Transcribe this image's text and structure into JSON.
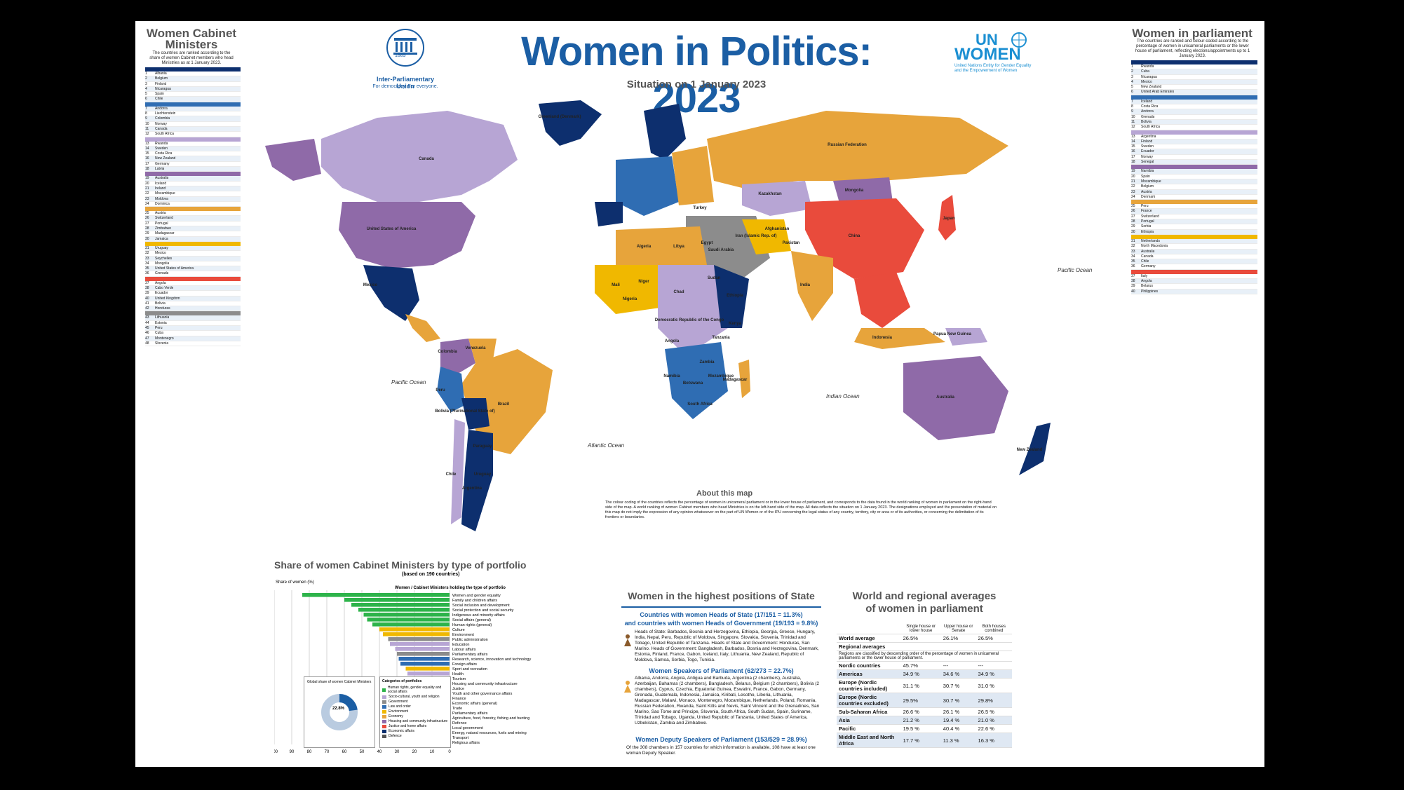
{
  "header": {
    "title": "Women in Politics: 2023",
    "subtitle": "Situation on 1 January 2023",
    "ipu_name": "Inter-Parliamentary Union",
    "ipu_tagline": "For democracy. For everyone.",
    "ipu_year": "1889",
    "unwomen_name": "WOMEN",
    "unwomen_un": "UN",
    "unwomen_tagline1": "United Nations Entity for Gender Equality",
    "unwomen_tagline2": "and the Empowerment of Women"
  },
  "left_panel": {
    "title1": "Women Cabinet",
    "title2": "Ministers",
    "note": "The countries are ranked according to the share of women Cabinet members who head Ministries as at 1 January 2023.",
    "rows": [
      "Albania",
      "Belgium",
      "Finland",
      "Nicaragua",
      "Spain",
      "Chile",
      "Andorra",
      "Liechtenstein",
      "Colombia",
      "Norway",
      "Canada",
      "South Africa",
      "Rwanda",
      "Sweden",
      "Costa Rica",
      "New Zealand",
      "Germany",
      "Latvia",
      "Australia",
      "Iceland",
      "Ireland",
      "Mozambique",
      "Moldova",
      "Dominica",
      "Austria",
      "Switzerland",
      "Portugal",
      "Zimbabwe",
      "Madagascar",
      "Jamaica",
      "Uruguay",
      "Mexico",
      "Seychelles",
      "Mongolia",
      "United States of America",
      "Grenada",
      "Angola",
      "Cabo Verde",
      "Ecuador",
      "United Kingdom",
      "Bolivia",
      "Honduras",
      "Lithuania",
      "Estonia",
      "Peru",
      "Cuba",
      "Montenegro",
      "Slovenia"
    ]
  },
  "right_panel": {
    "title": "Women in parliament",
    "note": "The countries are ranked and colour-coded according to the percentage of women in unicameral parliaments or the lower house of parliament, reflecting elections/appointments up to 1 January 2023.",
    "rows": [
      "Rwanda",
      "Cuba",
      "Nicaragua",
      "Mexico",
      "New Zealand",
      "United Arab Emirates",
      "Iceland",
      "Costa Rica",
      "Andorra",
      "Grenada",
      "Bolivia",
      "South Africa",
      "Argentina",
      "Finland",
      "Sweden",
      "Ecuador",
      "Norway",
      "Senegal",
      "Namibia",
      "Spain",
      "Mozambique",
      "Belgium",
      "Austria",
      "Denmark",
      "Peru",
      "France",
      "Switzerland",
      "Portugal",
      "Serbia",
      "Ethiopia",
      "Netherlands",
      "North Macedonia",
      "Australia",
      "Canada",
      "Chile",
      "Germany",
      "Italy",
      "Angola",
      "Belarus",
      "Philippines"
    ]
  },
  "map": {
    "oceans": [
      "Pacific Ocean",
      "Atlantic Ocean",
      "Indian Ocean",
      "Pacific Ocean"
    ],
    "labels": [
      "Canada",
      "United States of America",
      "Mexico",
      "Brazil",
      "Russian Federation",
      "China",
      "Australia",
      "India",
      "Algeria",
      "Libya",
      "Egypt",
      "Sudan",
      "Chad",
      "Niger",
      "Mali",
      "Kazakhstan",
      "Mongolia",
      "Greenland (Denmark)",
      "Argentina",
      "Peru",
      "Colombia",
      "Bolivia (Plurinational State of)",
      "Democratic Republic of the Congo",
      "Angola",
      "Ethiopia",
      "Iran (Islamic Rep. of)",
      "Saudi Arabia",
      "Indonesia",
      "Papua New Guinea",
      "New Zealand",
      "Japan",
      "Kenya",
      "Nigeria",
      "Chile",
      "Uruguay",
      "Venezuela",
      "Paraguay",
      "Pakistan",
      "Afghanistan",
      "Turkey",
      "Madagascar",
      "South Africa",
      "Botswana",
      "Namibia",
      "Zambia",
      "Mozambique",
      "Tanzania"
    ]
  },
  "about": {
    "title": "About this map",
    "text": "The colour coding of the countries reflects the percentage of women in unicameral parliament or in the lower house of parliament, and corresponds to the data found in the world ranking of women in parliament on the right-hand side of the map. A world ranking of women Cabinet members who head Ministries is on the left-hand side of the map. All data reflects the situation on 1 January 2023. The designations employed and the presentation of material on this map do not imply the expression of any opinion whatsoever on the part of UN Women or of the IPU concerning the legal status of any country, territory, city or area or of its authorities, or concerning the delimitation of its frontiers or boundaries."
  },
  "portfolio_chart": {
    "title": "Share of women Cabinet Ministers by type of portfolio",
    "subtitle": "(based on 190 countries)",
    "ylabel": "Share of women (%)",
    "xlabel": "Women / Cabinet Ministers holding the type of portfolio",
    "donut_label": "Global share of women Cabinet Ministers",
    "donut_value": "22.8%",
    "legend_title": "Categories of portfolios",
    "legend": [
      "Human rights, gender equality and social affairs",
      "Socio-cultural, youth and religion",
      "Government",
      "Law and order",
      "Environment",
      "Economy",
      "Housing and community infrastructure",
      "Justice and home affairs",
      "Economic affairs",
      "Defence"
    ],
    "axis_ticks": [
      "100",
      "90",
      "80",
      "70",
      "60",
      "50",
      "40",
      "30",
      "20",
      "10",
      "0"
    ]
  },
  "chart_data": {
    "type": "bar",
    "title": "Share of women Cabinet Ministers by type of portfolio",
    "xlabel": "Share of women (%)",
    "categories": [
      "Women and gender equality",
      "Family and children affairs",
      "Social inclusion and development",
      "Social protection and social security",
      "Indigenous and minority affairs",
      "Social affairs (general)",
      "Human rights (general)",
      "Culture",
      "Environment",
      "Public administration",
      "Education",
      "Labour affairs",
      "Parliamentary affairs",
      "Research, science, innovation and technology",
      "Foreign affairs",
      "Sport and recreation",
      "Health",
      "Tourism",
      "Housing and community infrastructure",
      "Justice",
      "Youth and other governance affairs",
      "Finance",
      "Economic affairs (general)",
      "Trade",
      "Parliamentary affairs",
      "Agriculture, food, forestry, fishing and hunting",
      "Defence",
      "Local government",
      "Energy, natural resources, fuels and mining",
      "Transport",
      "Religious affairs"
    ],
    "values": [
      84,
      60,
      56,
      52,
      49,
      47,
      44,
      40,
      38,
      35,
      34,
      31,
      30,
      29,
      28,
      25,
      24,
      23,
      22,
      22,
      20,
      18,
      17,
      17,
      15,
      15,
      13,
      12,
      11,
      10,
      8
    ],
    "xlim": [
      0,
      100
    ]
  },
  "highest_positions": {
    "title": "Women in the highest positions of State",
    "heads_title1": "Countries with women Heads of State (17/151 = 11.3%)",
    "heads_title2": "and countries with women Heads of Government (19/193 = 9.8%)",
    "heads_text": "Heads of State: Barbados, Bosnia and Herzegovina, Ethiopia, Georgia, Greece, Hungary, India, Nepal, Peru, Republic of Moldova, Singapore, Slovakia, Slovenia, Trinidad and Tobago, United Republic of Tanzania. Heads of State and Government: Honduras, San Marino. Heads of Government: Bangladesh, Barbados, Bosnia and Herzegovina, Denmark, Estonia, Finland, France, Gabon, Iceland, Italy, Lithuania, New Zealand, Republic of Moldova, Samoa, Serbia, Togo, Tunisia.",
    "speakers_title": "Women Speakers of Parliament (62/273 = 22.7%)",
    "speakers_text": "Albania, Andorra, Angola, Antigua and Barbuda, Argentina (2 chambers), Australia, Azerbaijan, Bahamas (2 chambers), Bangladesh, Belarus, Belgium (2 chambers), Bolivia (2 chambers), Cyprus, Czechia, Equatorial Guinea, Eswatini, France, Gabon, Germany, Grenada, Guatemala, Indonesia, Jamaica, Kiribati, Lesotho, Liberia, Lithuania, Madagascar, Malawi, Monaco, Montenegro, Mozambique, Netherlands, Poland, Romania, Russian Federation, Rwanda, Saint Kitts and Nevis, Saint Vincent and the Grenadines, San Marino, Sao Tome and Principe, Slovenia, South Africa, South Sudan, Spain, Suriname, Trinidad and Tobago, Uganda, United Republic of Tanzania, United States of America, Uzbekistan, Zambia and Zimbabwe.",
    "deputy_title": "Women Deputy Speakers of Parliament (153/529 = 28.9%)",
    "deputy_text": "Of the 308 chambers in 157 countries for which information is available, 108 have at least one woman Deputy Speaker."
  },
  "averages": {
    "title1": "World and regional averages",
    "title2": "of women in parliament",
    "col1": "Single house or lower house",
    "col2": "Upper house or Senate",
    "col3": "Both houses combined",
    "world_label": "World average",
    "world": [
      "26.5%",
      "26.1%",
      "26.5%"
    ],
    "regional_label": "Regional averages",
    "regional_note": "Regions are classified by descending order of the percentage of women in unicameral parliaments or the lower house of parliament.",
    "rows": [
      {
        "region": "Nordic countries",
        "v": [
          "45.7%",
          "---",
          "---"
        ]
      },
      {
        "region": "Americas",
        "v": [
          "34.9 %",
          "34.6 %",
          "34.9 %"
        ]
      },
      {
        "region": "Europe (Nordic countries included)",
        "v": [
          "31.1 %",
          "30.7 %",
          "31.0 %"
        ]
      },
      {
        "region": "Europe (Nordic countries excluded)",
        "v": [
          "29.5%",
          "30.7 %",
          "29.8%"
        ]
      },
      {
        "region": "Sub-Saharan Africa",
        "v": [
          "26.6 %",
          "26.1 %",
          "26.5 %"
        ]
      },
      {
        "region": "Asia",
        "v": [
          "21.2 %",
          "19.4 %",
          "21.0 %"
        ]
      },
      {
        "region": "Pacific",
        "v": [
          "19.5 %",
          "40.4 %",
          "22.6 %"
        ]
      },
      {
        "region": "Middle East and North Africa",
        "v": [
          "17.7 %",
          "11.3 %",
          "16.3 %"
        ]
      }
    ]
  },
  "colors": {
    "brand_blue": "#1b5ea4",
    "band_0": "#0d2f6e",
    "band_1": "#2f6db3",
    "band_2": "#b7a5d4",
    "band_3": "#8f6aa8",
    "band_4": "#e7a43b",
    "band_5": "#f0b800",
    "band_6": "#e94b3c",
    "band_7": "#8c8c8c"
  }
}
